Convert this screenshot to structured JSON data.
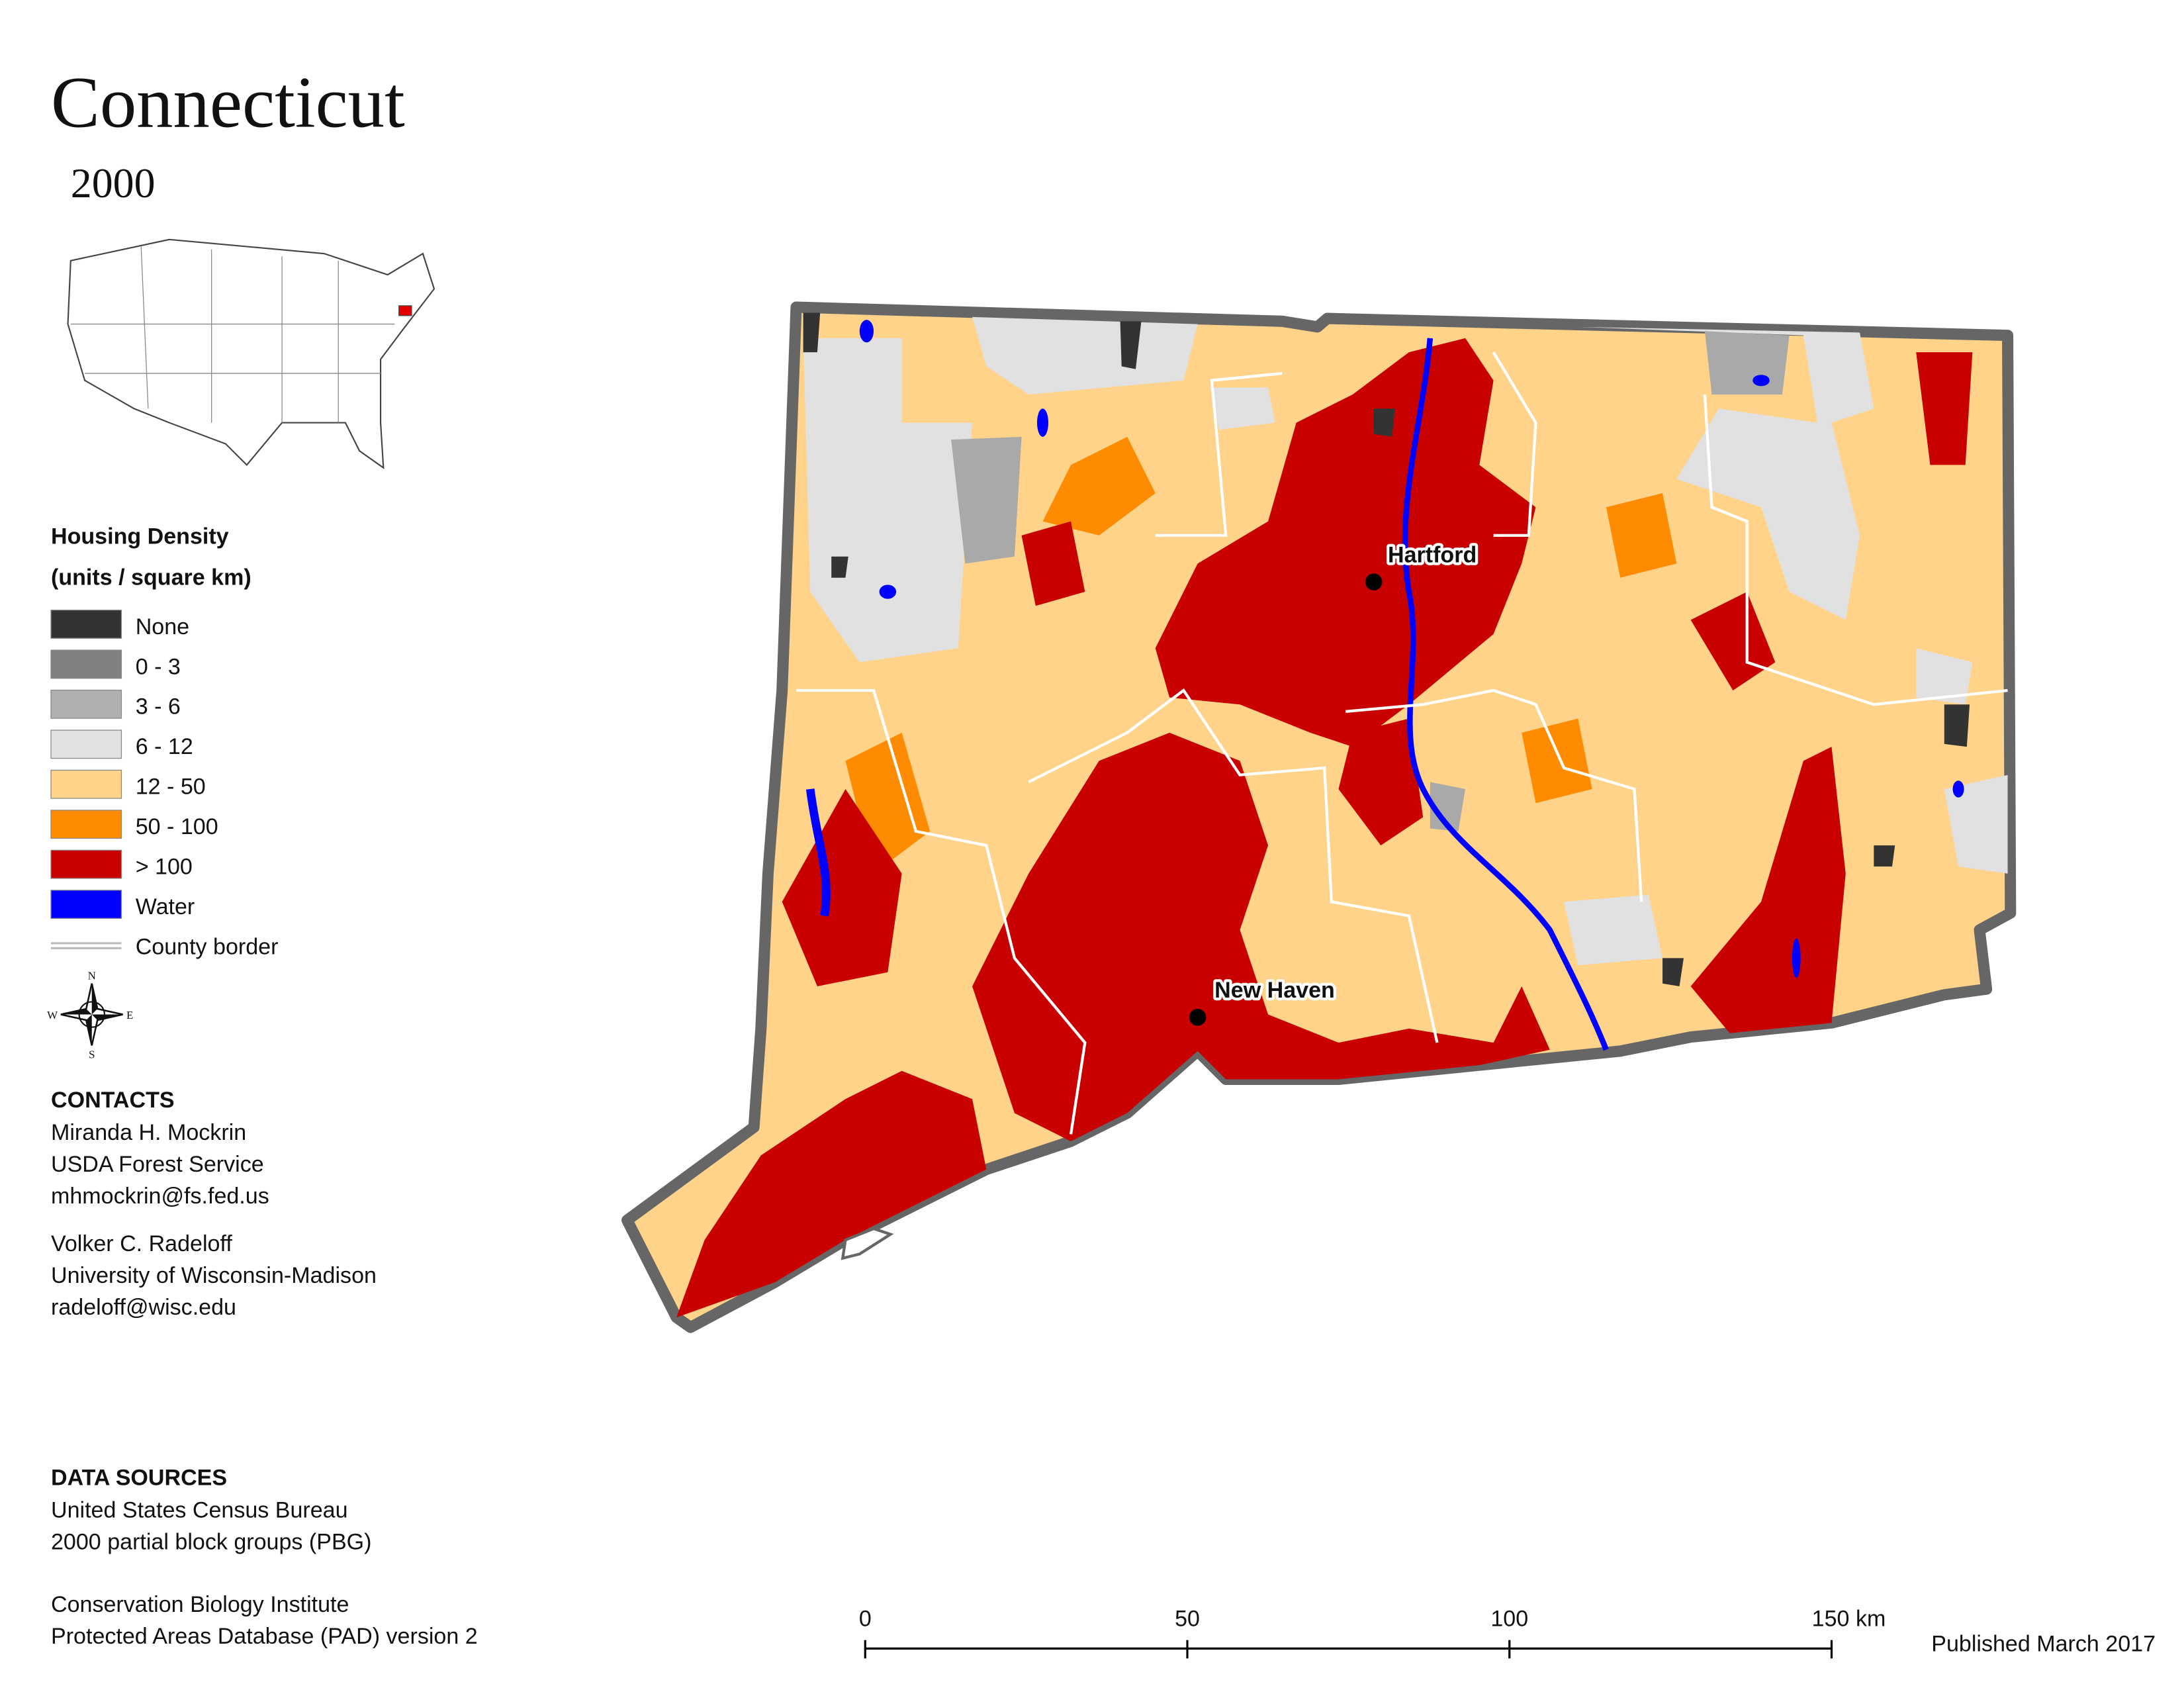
{
  "title": "Connecticut",
  "subtitle": "2000",
  "legend": {
    "title": "Housing Density",
    "subtitle": "(units / square km)",
    "items": [
      {
        "label": "None",
        "color": "#333333"
      },
      {
        "label": "0 - 3",
        "color": "#808080"
      },
      {
        "label": "3 - 6",
        "color": "#b0b0b0"
      },
      {
        "label": "6 - 12",
        "color": "#e1e1e1"
      },
      {
        "label": "12 - 50",
        "color": "#ffd38a"
      },
      {
        "label": "50 - 100",
        "color": "#ff8c00"
      },
      {
        "label": "> 100",
        "color": "#c80000"
      },
      {
        "label": "Water",
        "color": "#0000ff"
      },
      {
        "label": "County border"
      }
    ]
  },
  "compass": [
    "N",
    "E",
    "S",
    "W"
  ],
  "cities": [
    {
      "name": "Hartford"
    },
    {
      "name": "New Haven"
    }
  ],
  "contacts": {
    "heading": "CONTACTS",
    "people": [
      [
        "Miranda H. Mockrin",
        "USDA Forest Service",
        "mhmockrin@fs.fed.us"
      ],
      [
        "Volker C. Radeloff",
        "University of Wisconsin-Madison",
        "radeloff@wisc.edu"
      ]
    ]
  },
  "data_sources": {
    "heading": "DATA SOURCES",
    "entries": [
      [
        "United States Census Bureau",
        "2000 partial block groups (PBG)"
      ],
      [
        "Conservation Biology Institute",
        "Protected Areas Database (PAD) version 2"
      ]
    ]
  },
  "scale_bar": {
    "labels": [
      "0",
      "50",
      "100",
      "150 km"
    ]
  },
  "published": "Published March 2017"
}
